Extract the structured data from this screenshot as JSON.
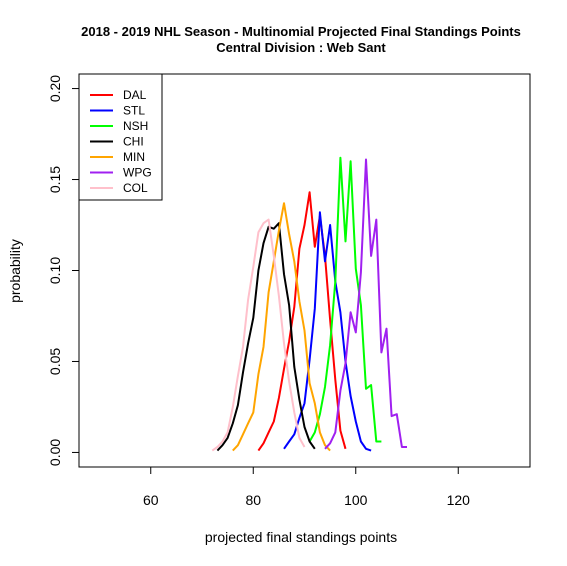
{
  "chart_data": {
    "type": "line",
    "title": "2018 - 2019 NHL Season - Multinomial Projected Final Standings Points",
    "subtitle": "Central Division : Web Sant",
    "xlabel": "projected final standings points",
    "ylabel": "probability",
    "xlim": [
      46,
      134
    ],
    "ylim": [
      -0.008,
      0.208
    ],
    "xticks": [
      60,
      80,
      100,
      120
    ],
    "yticks": [
      0.0,
      0.05,
      0.1,
      0.15,
      0.2
    ],
    "ytick_labels": [
      "0.00",
      "0.05",
      "0.10",
      "0.15",
      "0.20"
    ],
    "legend_position": "top-left",
    "series": [
      {
        "name": "DAL",
        "color": "#ff0000",
        "x": [
          81,
          82,
          83,
          84,
          85,
          86,
          87,
          88,
          89,
          90,
          91,
          92,
          93,
          94,
          95,
          96,
          97,
          98
        ],
        "y": [
          0.001,
          0.005,
          0.011,
          0.017,
          0.03,
          0.046,
          0.061,
          0.08,
          0.112,
          0.125,
          0.143,
          0.113,
          0.13,
          0.108,
          0.073,
          0.04,
          0.012,
          0.002
        ]
      },
      {
        "name": "STL",
        "color": "#0000ff",
        "x": [
          86,
          87,
          88,
          89,
          90,
          91,
          92,
          93,
          94,
          95,
          96,
          97,
          98,
          99,
          100,
          101,
          102,
          103
        ],
        "y": [
          0.002,
          0.006,
          0.01,
          0.019,
          0.027,
          0.051,
          0.079,
          0.132,
          0.105,
          0.125,
          0.094,
          0.077,
          0.05,
          0.031,
          0.017,
          0.006,
          0.002,
          0.001
        ]
      },
      {
        "name": "NSH",
        "color": "#00ff00",
        "x": [
          91,
          92,
          93,
          94,
          95,
          96,
          97,
          98,
          99,
          100,
          101,
          102,
          103,
          104,
          105
        ],
        "y": [
          0.006,
          0.011,
          0.021,
          0.036,
          0.059,
          0.094,
          0.162,
          0.116,
          0.16,
          0.101,
          0.081,
          0.035,
          0.037,
          0.006,
          0.006
        ]
      },
      {
        "name": "CHI",
        "color": "#000000",
        "x": [
          73,
          74,
          75,
          76,
          77,
          78,
          79,
          80,
          81,
          82,
          83,
          84,
          85,
          86,
          87,
          88,
          89,
          90,
          91,
          92
        ],
        "y": [
          0.001,
          0.004,
          0.008,
          0.016,
          0.026,
          0.044,
          0.06,
          0.074,
          0.1,
          0.115,
          0.124,
          0.123,
          0.126,
          0.098,
          0.081,
          0.047,
          0.029,
          0.014,
          0.006,
          0.002
        ]
      },
      {
        "name": "MIN",
        "color": "#ffa500",
        "x": [
          76,
          77,
          78,
          79,
          80,
          81,
          82,
          83,
          84,
          85,
          86,
          87,
          88,
          89,
          90,
          91,
          92,
          93,
          94,
          95
        ],
        "y": [
          0.001,
          0.004,
          0.01,
          0.016,
          0.022,
          0.043,
          0.058,
          0.088,
          0.105,
          0.122,
          0.137,
          0.12,
          0.105,
          0.083,
          0.067,
          0.038,
          0.027,
          0.011,
          0.004,
          0.001
        ]
      },
      {
        "name": "WPG",
        "color": "#a020f0",
        "x": [
          94,
          95,
          96,
          97,
          98,
          99,
          100,
          101,
          102,
          103,
          104,
          105,
          106,
          107,
          108,
          109,
          110
        ],
        "y": [
          0.002,
          0.005,
          0.011,
          0.034,
          0.049,
          0.077,
          0.066,
          0.099,
          0.161,
          0.108,
          0.128,
          0.055,
          0.068,
          0.02,
          0.021,
          0.003,
          0.003
        ]
      },
      {
        "name": "COL",
        "color": "#ffc0cb",
        "x": [
          72,
          73,
          74,
          75,
          76,
          77,
          78,
          79,
          80,
          81,
          82,
          83,
          84,
          85,
          86,
          87,
          88,
          89,
          90
        ],
        "y": [
          0.001,
          0.003,
          0.006,
          0.011,
          0.025,
          0.042,
          0.058,
          0.084,
          0.102,
          0.121,
          0.126,
          0.128,
          0.108,
          0.086,
          0.06,
          0.039,
          0.022,
          0.008,
          0.003
        ]
      }
    ]
  }
}
